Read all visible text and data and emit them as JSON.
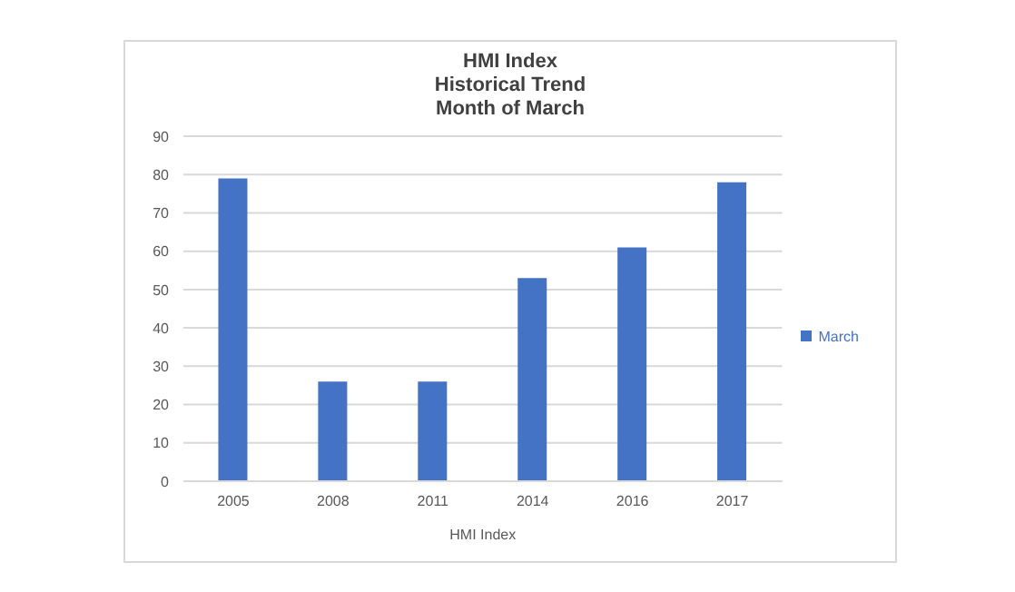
{
  "chart_data": {
    "type": "bar",
    "title": "HMI Index\nHistorical Trend\nMonth of March",
    "xlabel": "HMI Index",
    "categories": [
      "2005",
      "2008",
      "2011",
      "2014",
      "2016",
      "2017"
    ],
    "series": [
      {
        "name": "March",
        "color": "#4472c4",
        "values": [
          79,
          26,
          26,
          53,
          61,
          78
        ]
      }
    ],
    "ylim": [
      0,
      90
    ],
    "yticks": [
      0,
      10,
      20,
      30,
      40,
      50,
      60,
      70,
      80,
      90
    ],
    "grid": "y",
    "legend": "right"
  }
}
